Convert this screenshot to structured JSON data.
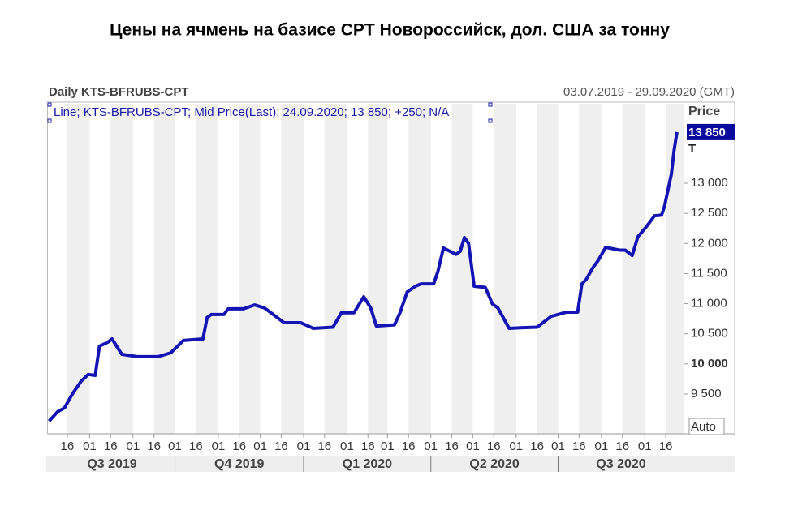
{
  "chart_data": {
    "type": "line",
    "title": "Цены на ячмень на базисе CPT Новороссийск, дол. США за тонну",
    "subtitle": "Daily KTS-BFRUBS-CPT",
    "date_range": "03.07.2019 - 29.09.2020 (GMT)",
    "legend_text": "Line; KTS-BFRUBS-CPT; Mid Price(Last); 24.09.2020; 13 850; +250; N/A",
    "y_label": "Price",
    "unit": "T",
    "auto_button": "Auto",
    "current_price": {
      "value": 13850,
      "label": "13 850"
    },
    "xlim": [
      "2019-07-03",
      "2020-09-29"
    ],
    "ylim": [
      8840,
      14320
    ],
    "yticks": [
      {
        "value": 9500,
        "label": "9 500"
      },
      {
        "value": 10000,
        "label": "10 000"
      },
      {
        "value": 10500,
        "label": "10 500"
      },
      {
        "value": 11000,
        "label": "11 000"
      },
      {
        "value": 11500,
        "label": "11 500"
      },
      {
        "value": 12000,
        "label": "12 000"
      },
      {
        "value": 12500,
        "label": "12 500"
      },
      {
        "value": 13000,
        "label": "13 000"
      }
    ],
    "xticks": [
      {
        "value": "2019-07-16",
        "label": "16"
      },
      {
        "value": "2019-08-01",
        "label": "01"
      },
      {
        "value": "2019-08-16",
        "label": "16"
      },
      {
        "value": "2019-09-01",
        "label": "01"
      },
      {
        "value": "2019-09-16",
        "label": "16"
      },
      {
        "value": "2019-10-01",
        "label": "01"
      },
      {
        "value": "2019-10-16",
        "label": "16"
      },
      {
        "value": "2019-11-01",
        "label": "01"
      },
      {
        "value": "2019-11-16",
        "label": "16"
      },
      {
        "value": "2019-12-01",
        "label": "01"
      },
      {
        "value": "2019-12-16",
        "label": "16"
      },
      {
        "value": "2020-01-01",
        "label": "01"
      },
      {
        "value": "2020-01-16",
        "label": "16"
      },
      {
        "value": "2020-02-01",
        "label": "01"
      },
      {
        "value": "2020-02-16",
        "label": "16"
      },
      {
        "value": "2020-03-01",
        "label": "01"
      },
      {
        "value": "2020-03-16",
        "label": "16"
      },
      {
        "value": "2020-04-01",
        "label": "01"
      },
      {
        "value": "2020-04-16",
        "label": "16"
      },
      {
        "value": "2020-05-01",
        "label": "01"
      },
      {
        "value": "2020-05-16",
        "label": "16"
      },
      {
        "value": "2020-06-01",
        "label": "01"
      },
      {
        "value": "2020-06-16",
        "label": "16"
      },
      {
        "value": "2020-07-01",
        "label": "01"
      },
      {
        "value": "2020-07-16",
        "label": "16"
      },
      {
        "value": "2020-08-01",
        "label": "01"
      },
      {
        "value": "2020-08-16",
        "label": "16"
      },
      {
        "value": "2020-09-01",
        "label": "01"
      },
      {
        "value": "2020-09-16",
        "label": "16"
      }
    ],
    "quarters": [
      {
        "value": "2019-07-01",
        "label": "Q3 2019"
      },
      {
        "value": "2019-10-01",
        "label": "Q4 2019"
      },
      {
        "value": "2020-01-01",
        "label": "Q1 2020"
      },
      {
        "value": "2020-04-01",
        "label": "Q2 2020"
      },
      {
        "value": "2020-07-01",
        "label": "Q3 2020"
      }
    ],
    "x": [
      "2019-07-03",
      "2019-07-09",
      "2019-07-14",
      "2019-07-20",
      "2019-07-26",
      "2019-07-31",
      "2019-08-05",
      "2019-08-08",
      "2019-08-14",
      "2019-08-17",
      "2019-08-24",
      "2019-09-04",
      "2019-09-19",
      "2019-09-28",
      "2019-10-07",
      "2019-10-21",
      "2019-10-24",
      "2019-10-27",
      "2019-11-05",
      "2019-11-08",
      "2019-11-19",
      "2019-11-27",
      "2019-12-04",
      "2019-12-18",
      "2019-12-30",
      "2020-01-08",
      "2020-01-22",
      "2020-01-28",
      "2020-02-06",
      "2020-02-13",
      "2020-02-18",
      "2020-02-22",
      "2020-03-06",
      "2020-03-10",
      "2020-03-15",
      "2020-03-21",
      "2020-03-25",
      "2020-04-03",
      "2020-04-06",
      "2020-04-10",
      "2020-04-19",
      "2020-04-22",
      "2020-04-25",
      "2020-04-28",
      "2020-05-02",
      "2020-05-10",
      "2020-05-15",
      "2020-05-19",
      "2020-05-27",
      "2020-06-04",
      "2020-06-16",
      "2020-06-26",
      "2020-07-07",
      "2020-07-15",
      "2020-07-18",
      "2020-07-21",
      "2020-07-26",
      "2020-07-30",
      "2020-08-04",
      "2020-08-14",
      "2020-08-18",
      "2020-08-23",
      "2020-08-27",
      "2020-09-02",
      "2020-09-08",
      "2020-09-13",
      "2020-09-15",
      "2020-09-20",
      "2020-09-22",
      "2020-09-24"
    ],
    "series": [
      {
        "name": "KTS-BFRUBS-CPT",
        "color": "#1414b4",
        "values": [
          9050,
          9205,
          9270,
          9515,
          9715,
          9825,
          9810,
          10295,
          10360,
          10415,
          10160,
          10120,
          10120,
          10185,
          10390,
          10415,
          10770,
          10820,
          10820,
          10915,
          10915,
          10980,
          10930,
          10685,
          10685,
          10590,
          10610,
          10850,
          10850,
          11115,
          10930,
          10630,
          10650,
          10850,
          11195,
          11290,
          11330,
          11330,
          11530,
          11925,
          11820,
          11870,
          12100,
          12000,
          11290,
          11270,
          10995,
          10930,
          10590,
          10600,
          10610,
          10790,
          10860,
          10860,
          11330,
          11400,
          11600,
          11730,
          11935,
          11890,
          11890,
          11800,
          12110,
          12275,
          12460,
          12470,
          12610,
          13150,
          13550,
          13850
        ]
      }
    ]
  }
}
